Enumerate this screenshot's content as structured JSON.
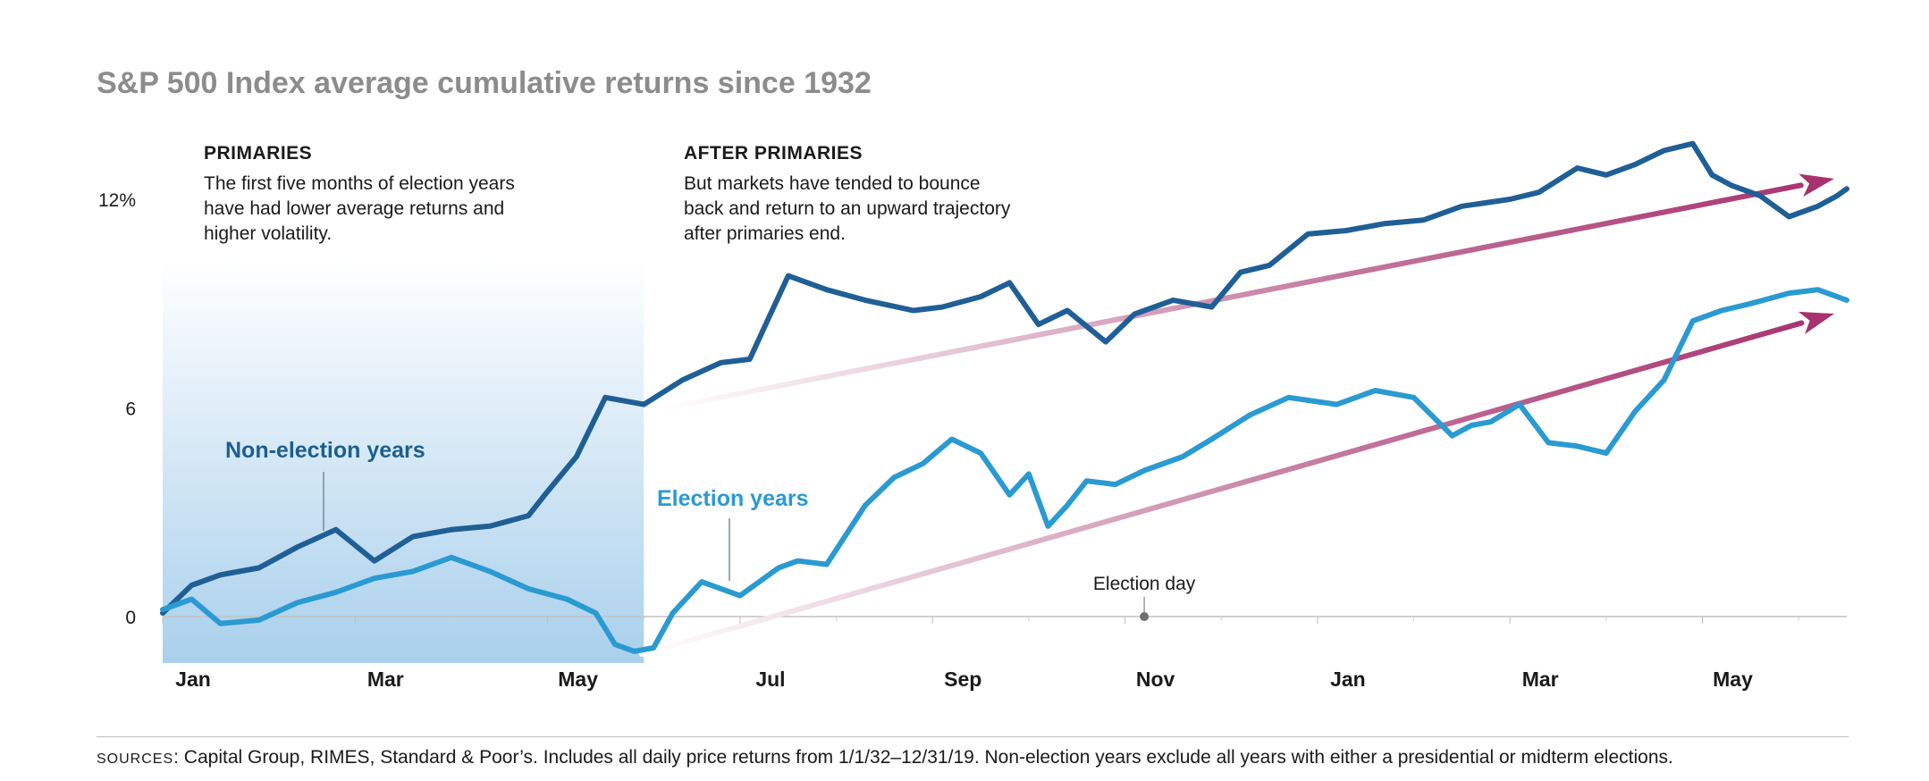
{
  "title": "S&P 500 Index average cumulative returns since 1932",
  "annotations": {
    "primaries": {
      "heading": "PRIMARIES",
      "body": "The first five months of election years\nhave had lower average returns and\nhigher volatility."
    },
    "after_primaries": {
      "heading": "AFTER PRIMARIES",
      "body": "But markets have tended to bounce\nback and return to an upward trajectory\nafter primaries end."
    },
    "election_day": "Election day"
  },
  "footer": {
    "label": "SOURCES",
    "text": ": Capital Group, RIMES, Standard & Poor’s. Includes all daily price returns from 1/1/32–12/31/19. Non-election years exclude all years with either a presidential or midterm elections."
  },
  "colors": {
    "non_election": "#1f5f96",
    "election": "#2a9ad2",
    "arrow": "#a8316f",
    "label_non_election": "#1c5f8e",
    "label_election": "#2a9ad2",
    "shade_top": "#ffffff",
    "shade_bottom": "#a9d0ec"
  },
  "chart_data": {
    "type": "line",
    "title": "S&P 500 Index average cumulative returns since 1932",
    "x_tick_labels": [
      "Jan",
      "Mar",
      "May",
      "Jul",
      "Sep",
      "Nov",
      "Jan",
      "Mar",
      "May"
    ],
    "y_tick_labels": [
      "0",
      "6",
      "12%"
    ],
    "y_ticks": [
      0,
      6,
      12
    ],
    "ylim": [
      -1.3,
      13.5
    ],
    "x_range_months": [
      0,
      17.5
    ],
    "shaded_period_months": [
      0,
      5
    ],
    "election_day_month": 10.2,
    "series": [
      {
        "name": "Non-election years",
        "x_months": [
          0,
          0.3,
          0.6,
          1,
          1.4,
          1.8,
          2.2,
          2.6,
          3,
          3.4,
          3.8,
          4.0,
          4.3,
          4.6,
          5,
          5.4,
          5.8,
          6.1,
          6.3,
          6.5,
          6.9,
          7.3,
          7.8,
          8.1,
          8.5,
          8.8,
          9.1,
          9.4,
          9.8,
          10.1,
          10.5,
          10.9,
          11.2,
          11.5,
          11.9,
          12.3,
          12.7,
          13.1,
          13.5,
          14.0,
          14.3,
          14.7,
          15.0,
          15.3,
          15.6,
          15.9,
          16.1,
          16.3,
          16.6,
          16.9,
          17.2,
          17.4,
          17.5
        ],
        "values": [
          0.1,
          0.9,
          1.2,
          1.4,
          2.0,
          2.5,
          1.6,
          2.3,
          2.5,
          2.6,
          2.9,
          3.6,
          4.6,
          6.3,
          6.1,
          6.8,
          7.3,
          7.4,
          8.6,
          9.8,
          9.4,
          9.1,
          8.8,
          8.9,
          9.2,
          9.6,
          8.4,
          8.8,
          7.9,
          8.7,
          9.1,
          8.9,
          9.9,
          10.1,
          11.0,
          11.1,
          11.3,
          11.4,
          11.8,
          12.0,
          12.2,
          12.9,
          12.7,
          13.0,
          13.4,
          13.6,
          12.7,
          12.4,
          12.1,
          11.5,
          11.8,
          12.1,
          12.3
        ]
      },
      {
        "name": "Election years",
        "x_months": [
          0,
          0.3,
          0.6,
          1,
          1.4,
          1.8,
          2.2,
          2.6,
          3,
          3.4,
          3.8,
          4.2,
          4.5,
          4.7,
          4.9,
          5.1,
          5.3,
          5.6,
          6.0,
          6.4,
          6.6,
          6.9,
          7.3,
          7.6,
          7.9,
          8.2,
          8.5,
          8.8,
          9.0,
          9.2,
          9.4,
          9.6,
          9.9,
          10.2,
          10.6,
          10.9,
          11.3,
          11.7,
          12.2,
          12.6,
          13.0,
          13.4,
          13.6,
          13.8,
          14.1,
          14.4,
          14.7,
          15.0,
          15.3,
          15.6,
          15.9,
          16.2,
          16.5,
          16.9,
          17.2,
          17.5
        ],
        "values": [
          0.2,
          0.5,
          -0.2,
          -0.1,
          0.4,
          0.7,
          1.1,
          1.3,
          1.7,
          1.3,
          0.8,
          0.5,
          0.1,
          -0.8,
          -1.0,
          -0.9,
          0.1,
          1.0,
          0.6,
          1.4,
          1.6,
          1.5,
          3.2,
          4.0,
          4.4,
          5.1,
          4.7,
          3.5,
          4.1,
          2.6,
          3.2,
          3.9,
          3.8,
          4.2,
          4.6,
          5.1,
          5.8,
          6.3,
          6.1,
          6.5,
          6.3,
          5.2,
          5.5,
          5.6,
          6.1,
          5.0,
          4.9,
          4.7,
          5.9,
          6.8,
          8.5,
          8.8,
          9.0,
          9.3,
          9.4,
          9.1
        ]
      }
    ]
  }
}
